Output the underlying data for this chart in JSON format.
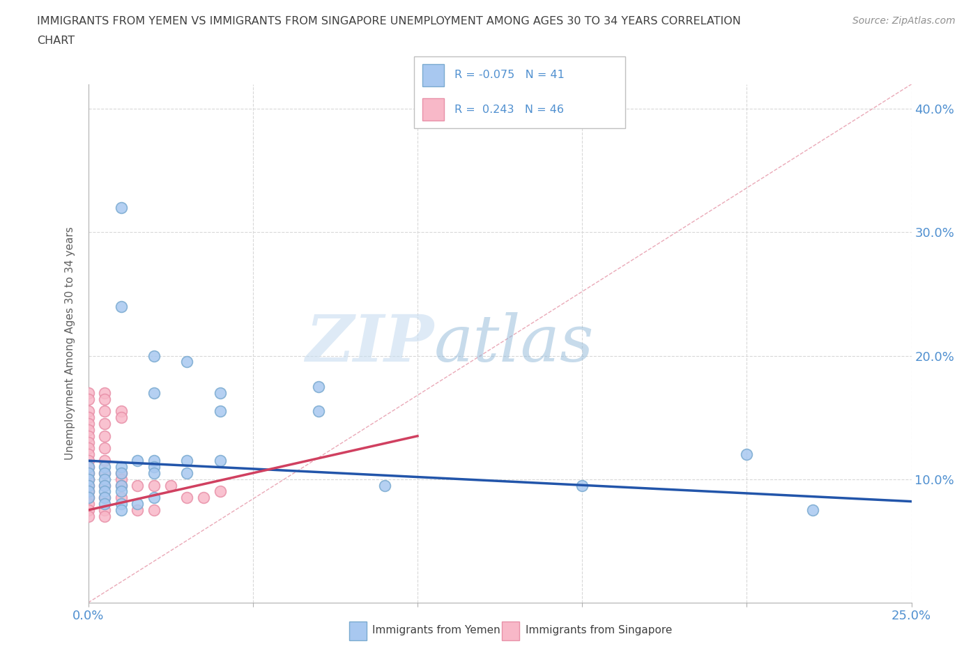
{
  "title_line1": "IMMIGRANTS FROM YEMEN VS IMMIGRANTS FROM SINGAPORE UNEMPLOYMENT AMONG AGES 30 TO 34 YEARS CORRELATION",
  "title_line2": "CHART",
  "source_text": "Source: ZipAtlas.com",
  "ylabel": "Unemployment Among Ages 30 to 34 years",
  "xlim": [
    0.0,
    0.25
  ],
  "ylim": [
    0.0,
    0.42
  ],
  "xtick_vals": [
    0.0,
    0.05,
    0.1,
    0.15,
    0.2,
    0.25
  ],
  "xtick_labels": [
    "0.0%",
    "",
    "",
    "",
    "",
    "25.0%"
  ],
  "ytick_vals": [
    0.0,
    0.1,
    0.2,
    0.3,
    0.4
  ],
  "ytick_labels_right": [
    "",
    "10.0%",
    "20.0%",
    "30.0%",
    "40.0%"
  ],
  "yemen_color": "#a8c8f0",
  "yemen_edge_color": "#7aaad0",
  "singapore_color": "#f8b8c8",
  "singapore_edge_color": "#e890a8",
  "watermark_zip": "ZIP",
  "watermark_atlas": "atlas",
  "watermark_color_zip": "#c8ddf0",
  "watermark_color_atlas": "#90b8d8",
  "trendline_color_yemen": "#2255aa",
  "trendline_color_singapore": "#d04060",
  "diagonal_color": "#e8a0b0",
  "diagonal_style": "--",
  "background_color": "#ffffff",
  "grid_color": "#d8d8d8",
  "axis_color": "#5090d0",
  "legend_rect_yemen": "#a8c8f0",
  "legend_rect_singapore": "#f8b8c8",
  "legend_border_yemen": "#7aaad0",
  "legend_border_singapore": "#e890a8",
  "marker_size": 130,
  "yemen_points": [
    [
      0.01,
      0.32
    ],
    [
      0.01,
      0.24
    ],
    [
      0.02,
      0.2
    ],
    [
      0.02,
      0.17
    ],
    [
      0.03,
      0.195
    ],
    [
      0.04,
      0.17
    ],
    [
      0.04,
      0.155
    ],
    [
      0.07,
      0.175
    ],
    [
      0.07,
      0.155
    ],
    [
      0.02,
      0.115
    ],
    [
      0.02,
      0.11
    ],
    [
      0.02,
      0.105
    ],
    [
      0.03,
      0.115
    ],
    [
      0.03,
      0.105
    ],
    [
      0.04,
      0.115
    ],
    [
      0.005,
      0.11
    ],
    [
      0.005,
      0.105
    ],
    [
      0.005,
      0.1
    ],
    [
      0.01,
      0.11
    ],
    [
      0.01,
      0.105
    ],
    [
      0.015,
      0.115
    ],
    [
      0.0,
      0.11
    ],
    [
      0.0,
      0.105
    ],
    [
      0.0,
      0.1
    ],
    [
      0.01,
      0.095
    ],
    [
      0.01,
      0.09
    ],
    [
      0.005,
      0.095
    ],
    [
      0.005,
      0.09
    ],
    [
      0.0,
      0.095
    ],
    [
      0.0,
      0.09
    ],
    [
      0.0,
      0.085
    ],
    [
      0.005,
      0.085
    ],
    [
      0.005,
      0.08
    ],
    [
      0.01,
      0.08
    ],
    [
      0.01,
      0.075
    ],
    [
      0.015,
      0.08
    ],
    [
      0.02,
      0.085
    ],
    [
      0.15,
      0.095
    ],
    [
      0.2,
      0.12
    ],
    [
      0.22,
      0.075
    ],
    [
      0.09,
      0.095
    ]
  ],
  "singapore_points": [
    [
      0.0,
      0.17
    ],
    [
      0.0,
      0.165
    ],
    [
      0.005,
      0.17
    ],
    [
      0.005,
      0.165
    ],
    [
      0.0,
      0.155
    ],
    [
      0.0,
      0.15
    ],
    [
      0.005,
      0.155
    ],
    [
      0.01,
      0.155
    ],
    [
      0.01,
      0.15
    ],
    [
      0.0,
      0.145
    ],
    [
      0.0,
      0.14
    ],
    [
      0.005,
      0.145
    ],
    [
      0.0,
      0.135
    ],
    [
      0.0,
      0.13
    ],
    [
      0.005,
      0.135
    ],
    [
      0.0,
      0.125
    ],
    [
      0.0,
      0.12
    ],
    [
      0.005,
      0.125
    ],
    [
      0.0,
      0.115
    ],
    [
      0.0,
      0.11
    ],
    [
      0.005,
      0.115
    ],
    [
      0.0,
      0.105
    ],
    [
      0.0,
      0.1
    ],
    [
      0.005,
      0.105
    ],
    [
      0.01,
      0.105
    ],
    [
      0.01,
      0.1
    ],
    [
      0.0,
      0.095
    ],
    [
      0.0,
      0.09
    ],
    [
      0.005,
      0.095
    ],
    [
      0.01,
      0.095
    ],
    [
      0.0,
      0.085
    ],
    [
      0.0,
      0.08
    ],
    [
      0.005,
      0.085
    ],
    [
      0.01,
      0.085
    ],
    [
      0.015,
      0.095
    ],
    [
      0.02,
      0.095
    ],
    [
      0.025,
      0.095
    ],
    [
      0.03,
      0.085
    ],
    [
      0.035,
      0.085
    ],
    [
      0.04,
      0.09
    ],
    [
      0.005,
      0.075
    ],
    [
      0.0,
      0.075
    ],
    [
      0.0,
      0.07
    ],
    [
      0.005,
      0.07
    ],
    [
      0.015,
      0.075
    ],
    [
      0.02,
      0.075
    ]
  ],
  "yemen_trendline": [
    [
      0.0,
      0.115
    ],
    [
      0.25,
      0.082
    ]
  ],
  "singapore_trendline": [
    [
      0.0,
      0.075
    ],
    [
      0.1,
      0.135
    ]
  ]
}
